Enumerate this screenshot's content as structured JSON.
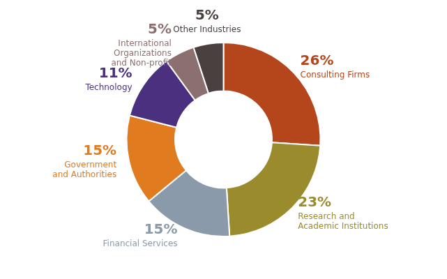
{
  "chart_data": {
    "type": "doughnut",
    "categories": [
      "Consulting Firms",
      "Research and\nAcademic Institutions",
      "Financial Services",
      "Government\nand Authorities",
      "Technology",
      "International\nOrganizations\nand Non-profit",
      "Other Industries"
    ],
    "values": [
      26,
      23,
      15,
      15,
      11,
      5,
      5
    ],
    "colors": [
      "#b5451b",
      "#9a8c2c",
      "#8a9aaa",
      "#e07b20",
      "#4b3080",
      "#8c7070",
      "#4a4040"
    ],
    "data_labels": true,
    "value_labels": [
      "26%",
      "23%",
      "15%",
      "15%",
      "11%",
      "5%",
      "5%"
    ]
  }
}
